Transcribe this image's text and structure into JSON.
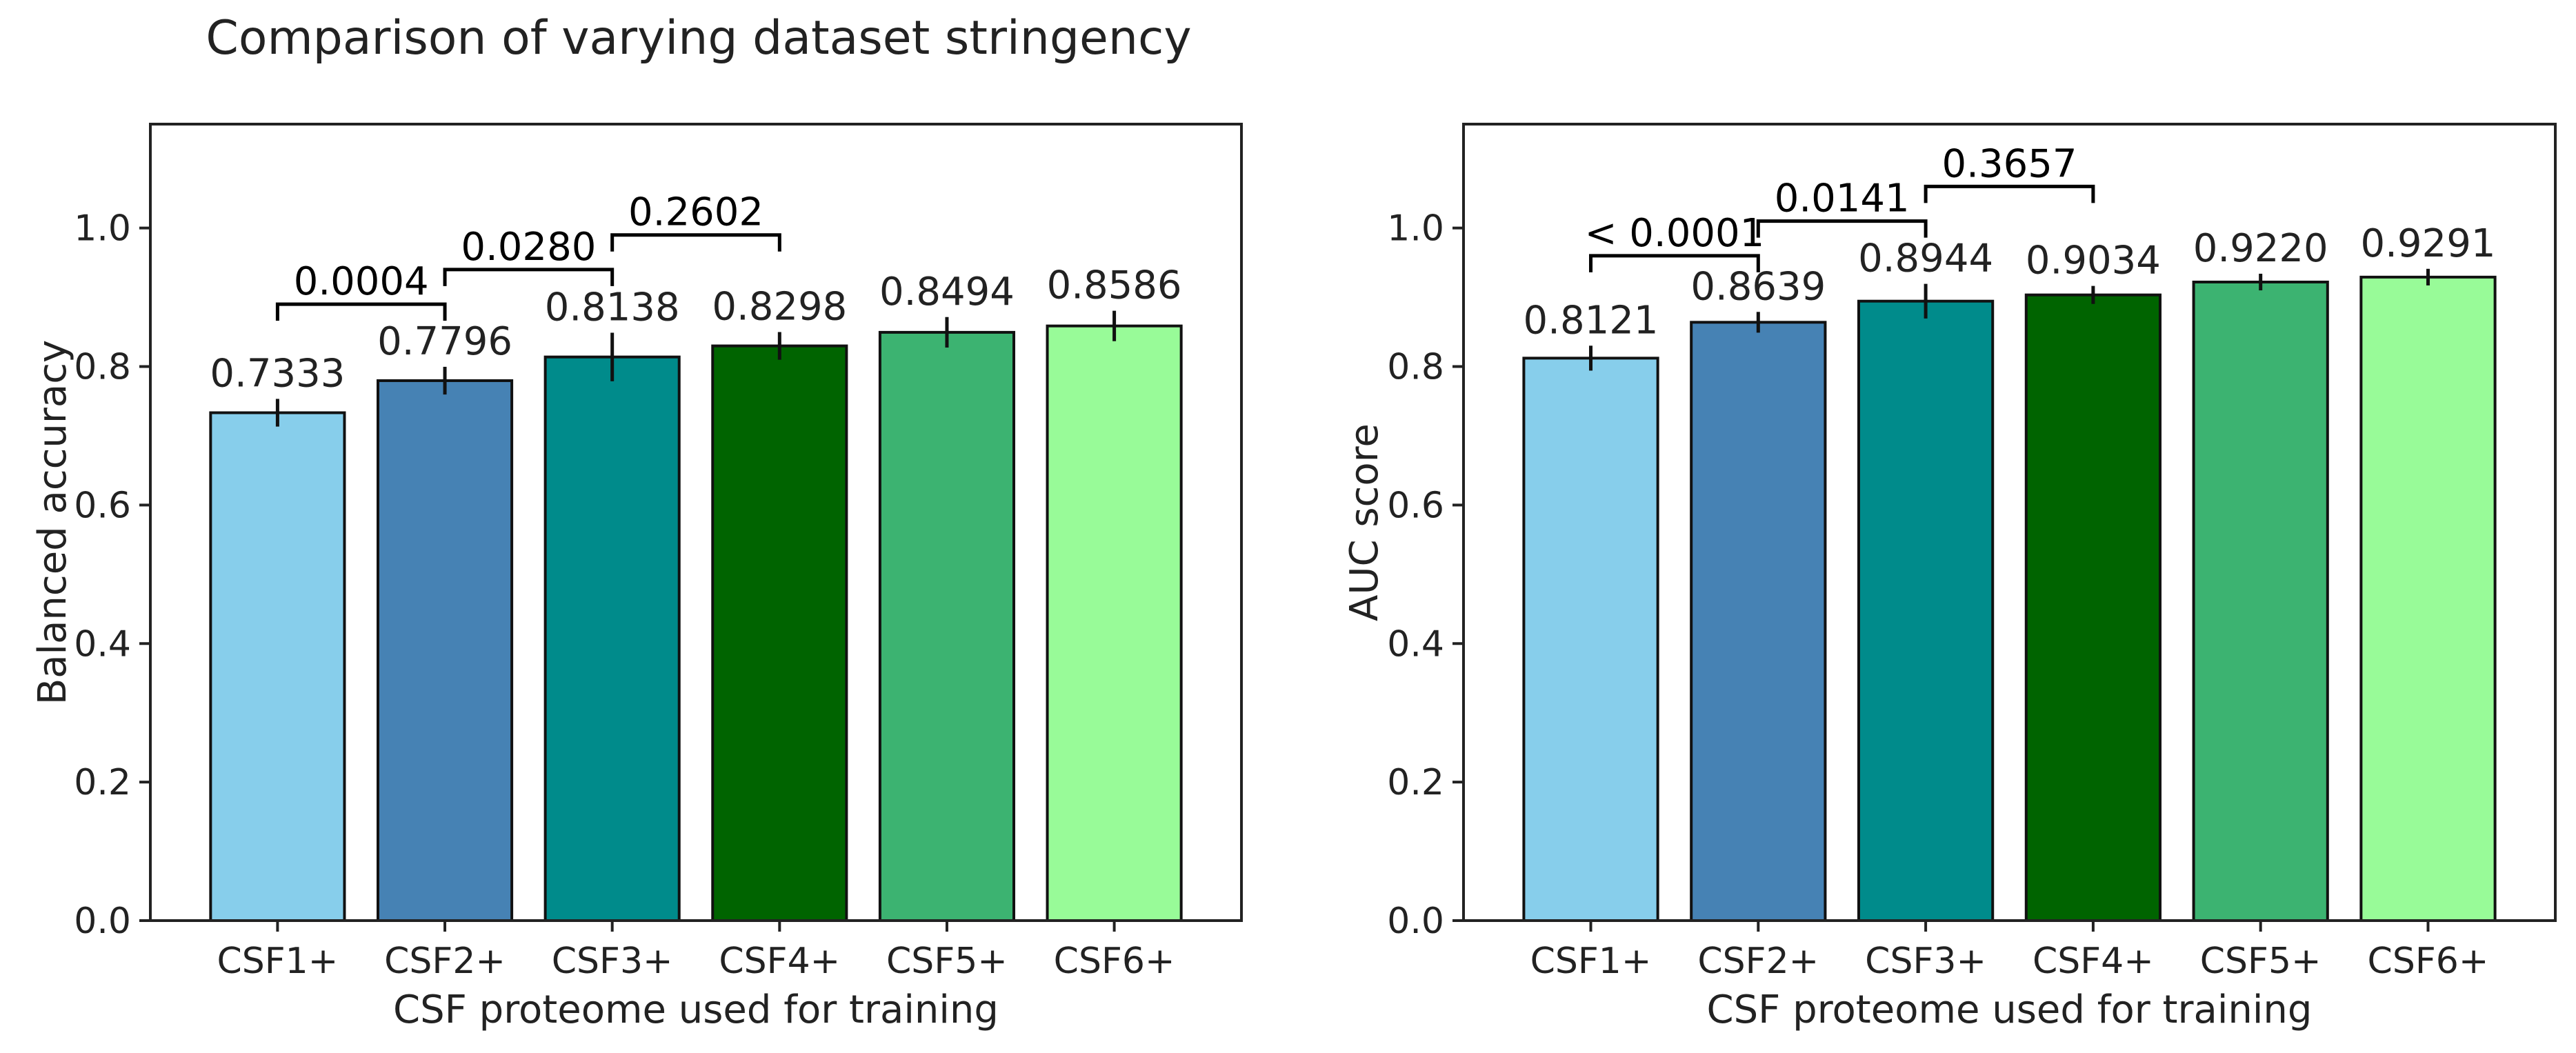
{
  "figure": {
    "title": "Comparison of varying dataset stringency"
  },
  "chart_data": [
    {
      "type": "bar",
      "title": "",
      "xlabel": "CSF proteome used for training",
      "ylabel": "Balanced accuracy",
      "categories": [
        "CSF1+",
        "CSF2+",
        "CSF3+",
        "CSF4+",
        "CSF5+",
        "CSF6+"
      ],
      "values": [
        0.7333,
        0.7796,
        0.8138,
        0.8298,
        0.8494,
        0.8586
      ],
      "value_labels": [
        "0.7333",
        "0.7796",
        "0.8138",
        "0.8298",
        "0.8494",
        "0.8586"
      ],
      "error": [
        0.02,
        0.02,
        0.035,
        0.02,
        0.022,
        0.022
      ],
      "colors": [
        "#87CEEB",
        "#4682B4",
        "#008B8B",
        "#006400",
        "#3CB371",
        "#98FB98"
      ],
      "ylim": [
        0,
        1.15
      ],
      "yticks": [
        0.0,
        0.2,
        0.4,
        0.6,
        0.8,
        1.0
      ],
      "ytick_labels": [
        "0.0",
        "0.2",
        "0.4",
        "0.6",
        "0.8",
        "1.0"
      ],
      "grid": false,
      "comparisons": [
        {
          "from": 0,
          "to": 1,
          "label": "0.0004",
          "y": 0.89
        },
        {
          "from": 1,
          "to": 2,
          "label": "0.0280",
          "y": 0.94
        },
        {
          "from": 2,
          "to": 3,
          "label": "0.2602",
          "y": 0.99
        }
      ]
    },
    {
      "type": "bar",
      "title": "",
      "xlabel": "CSF proteome used for training",
      "ylabel": "AUC score",
      "categories": [
        "CSF1+",
        "CSF2+",
        "CSF3+",
        "CSF4+",
        "CSF5+",
        "CSF6+"
      ],
      "values": [
        0.8121,
        0.8639,
        0.8944,
        0.9034,
        0.922,
        0.9291
      ],
      "value_labels": [
        "0.8121",
        "0.8639",
        "0.8944",
        "0.9034",
        "0.9220",
        "0.9291"
      ],
      "error": [
        0.018,
        0.015,
        0.025,
        0.013,
        0.012,
        0.012
      ],
      "colors": [
        "#87CEEB",
        "#4682B4",
        "#008B8B",
        "#006400",
        "#3CB371",
        "#98FB98"
      ],
      "ylim": [
        0,
        1.15
      ],
      "yticks": [
        0.0,
        0.2,
        0.4,
        0.6,
        0.8,
        1.0
      ],
      "ytick_labels": [
        "0.0",
        "0.2",
        "0.4",
        "0.6",
        "0.8",
        "1.0"
      ],
      "grid": false,
      "comparisons": [
        {
          "from": 0,
          "to": 1,
          "label": "< 0.0001",
          "y": 0.96
        },
        {
          "from": 1,
          "to": 2,
          "label": "0.0141",
          "y": 1.01
        },
        {
          "from": 2,
          "to": 3,
          "label": "0.3657",
          "y": 1.06
        }
      ]
    }
  ]
}
